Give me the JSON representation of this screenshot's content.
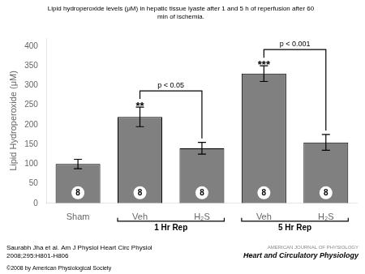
{
  "chart_data": {
    "type": "bar",
    "title": "Lipid hydroperoxide levels (μM) in hepatic tissue lyaste after 1 and 5 h of reperfusion after 60\nmin of ischemia.",
    "ylabel": "Lipid Hydroperoxide (μM)",
    "categories": [
      "Sham",
      "Veh",
      "H₂S",
      "Veh",
      "H₂S"
    ],
    "values": [
      100,
      220,
      140,
      330,
      155
    ],
    "errors": [
      12,
      25,
      15,
      20,
      20
    ],
    "color": "#808080",
    "ylim": [
      0,
      420
    ],
    "yticks": [
      0,
      50,
      100,
      150,
      200,
      250,
      300,
      350,
      400
    ],
    "grid": false,
    "n_label": "8",
    "groups": [
      {
        "label": "1 Hr Rep",
        "members": [
          1,
          2
        ]
      },
      {
        "label": "5 Hr Rep",
        "members": [
          3,
          4
        ]
      }
    ],
    "comparisons": [
      {
        "from": 1,
        "to": 2,
        "stars": "**",
        "label": "p < 0.05"
      },
      {
        "from": 3,
        "to": 4,
        "stars": "***",
        "label": "p < 0.001"
      }
    ],
    "citation": [
      "Saurabh Jha et al. Am J Physiol Heart Circ Physiol",
      "2008;295:H801-H806"
    ],
    "journal": [
      "AMERICAN JOURNAL OF PHYSIOLOGY",
      "Heart and Circulatory Physiology"
    ],
    "copyright": "©2008 by American Physiological Society"
  }
}
